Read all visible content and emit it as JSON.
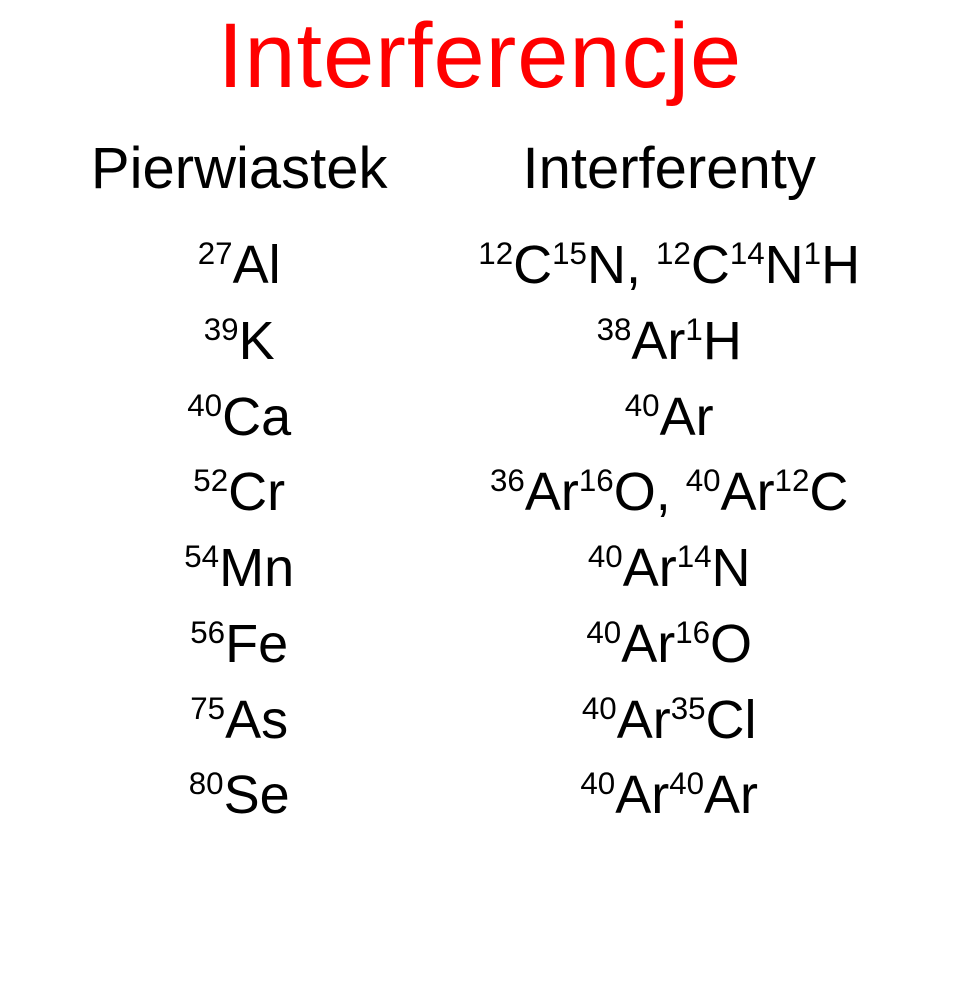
{
  "title": "Interferencje",
  "title_color": "#ff0000",
  "headers": {
    "element": "Pierwiastek",
    "interferents": "Interferenty"
  },
  "rows": [
    {
      "el_sup": "27",
      "el_sym": "Al",
      "int_html": "<sup>12</sup>C<sup>15</sup>N, <sup>12</sup>C<sup>14</sup>N<sup>1</sup>H"
    },
    {
      "el_sup": "39",
      "el_sym": "K",
      "int_html": "<sup>38</sup>Ar<sup>1</sup>H"
    },
    {
      "el_sup": "40",
      "el_sym": "Ca",
      "int_html": "<sup>40</sup>Ar"
    },
    {
      "el_sup": "52",
      "el_sym": "Cr",
      "int_html": "<sup>36</sup>Ar<sup>16</sup>O, <sup>40</sup>Ar<sup>12</sup>C"
    },
    {
      "el_sup": "54",
      "el_sym": "Mn",
      "int_html": "<sup>40</sup>Ar<sup>14</sup>N"
    },
    {
      "el_sup": "56",
      "el_sym": "Fe",
      "int_html": "<sup>40</sup>Ar<sup>16</sup>O"
    },
    {
      "el_sup": "75",
      "el_sym": "As",
      "int_html": "<sup>40</sup>Ar<sup>35</sup>Cl"
    },
    {
      "el_sup": "80",
      "el_sym": "Se",
      "int_html": "<sup>40</sup>Ar<sup>40</sup>Ar"
    }
  ]
}
